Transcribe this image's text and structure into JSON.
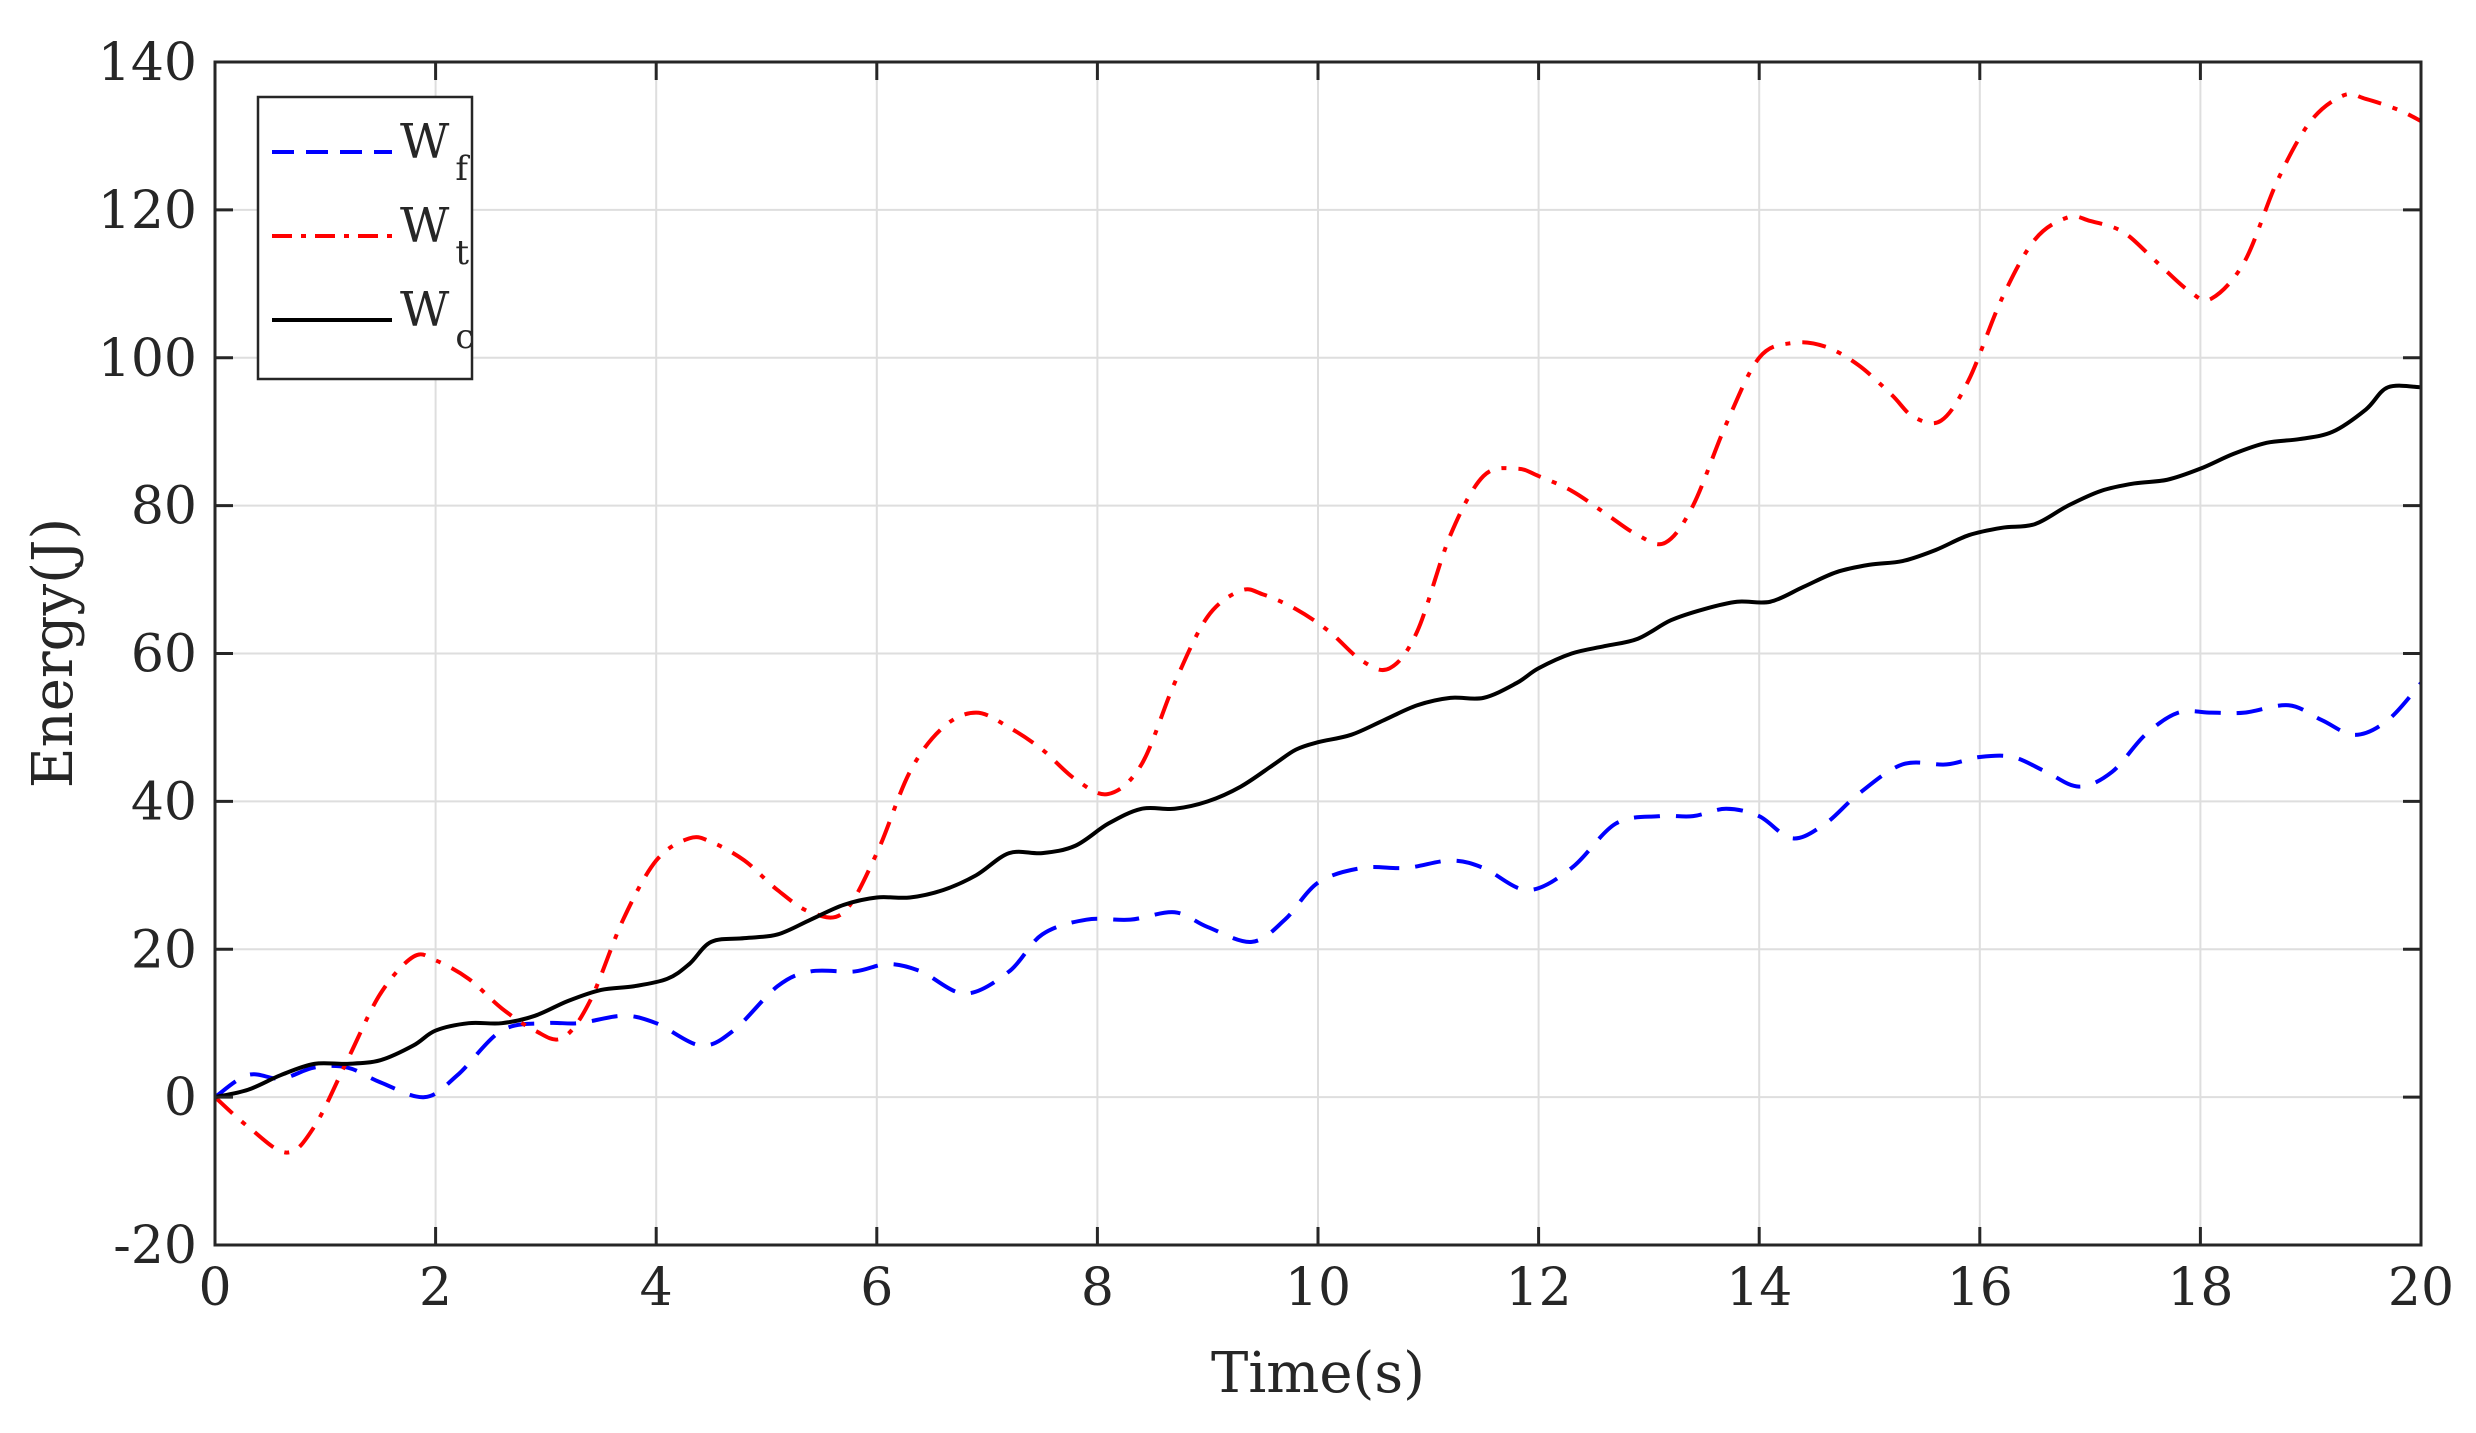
{
  "chart_data": {
    "type": "line",
    "xlabel": "Time(s)",
    "ylabel": "Energy(J)",
    "xlim": [
      0,
      20
    ],
    "ylim": [
      -20,
      140
    ],
    "xticks": [
      0,
      2,
      4,
      6,
      8,
      10,
      12,
      14,
      16,
      18,
      20
    ],
    "yticks": [
      -20,
      0,
      20,
      40,
      60,
      80,
      100,
      120,
      140
    ],
    "grid": true,
    "legend_position": "top-left",
    "series": [
      {
        "name": "W",
        "subscript": "f",
        "color": "#0000ff",
        "style": "dashed",
        "x": [
          0,
          0.3,
          0.6,
          0.9,
          1.2,
          1.5,
          1.9,
          2.2,
          2.6,
          3.0,
          3.3,
          3.7,
          4.0,
          4.4,
          4.7,
          5.1,
          5.4,
          5.8,
          6.1,
          6.4,
          6.8,
          7.2,
          7.5,
          7.9,
          8.3,
          8.7,
          9.0,
          9.4,
          9.7,
          10.0,
          10.4,
          10.8,
          11.2,
          11.5,
          11.9,
          12.3,
          12.7,
          13.1,
          13.4,
          13.7,
          14.0,
          14.3,
          14.6,
          14.9,
          15.3,
          15.7,
          16.0,
          16.3,
          16.6,
          16.9,
          17.2,
          17.5,
          17.8,
          18.1,
          18.4,
          18.8,
          19.1,
          19.4,
          19.7,
          20.0
        ],
        "y": [
          0,
          3,
          2.5,
          4,
          4,
          2,
          0,
          3,
          9,
          10,
          10,
          11,
          10,
          7,
          9,
          15,
          17,
          17,
          18,
          17,
          14,
          17,
          22,
          24,
          24,
          25,
          23,
          21,
          24,
          29,
          31,
          31,
          32,
          31,
          28,
          31,
          37,
          38,
          38,
          39,
          38,
          35,
          37,
          41,
          45,
          45,
          46,
          46,
          44,
          42,
          44,
          49,
          52,
          52,
          52,
          53,
          51,
          49,
          51,
          56
        ]
      },
      {
        "name": "W",
        "subscript": "t",
        "color": "#ff0000",
        "style": "dash-dot",
        "x": [
          0,
          0.3,
          0.65,
          0.9,
          1.2,
          1.5,
          1.8,
          2.0,
          2.3,
          2.6,
          2.9,
          3.15,
          3.4,
          3.7,
          4.0,
          4.3,
          4.5,
          4.8,
          5.1,
          5.4,
          5.7,
          6.0,
          6.3,
          6.6,
          6.9,
          7.2,
          7.5,
          7.8,
          8.1,
          8.4,
          8.7,
          9.0,
          9.3,
          9.5,
          9.8,
          10.1,
          10.4,
          10.65,
          10.9,
          11.2,
          11.5,
          11.8,
          12.0,
          12.3,
          12.6,
          12.9,
          13.15,
          13.4,
          13.7,
          14.0,
          14.3,
          14.6,
          14.9,
          15.2,
          15.4,
          15.65,
          15.9,
          16.2,
          16.5,
          16.8,
          17.0,
          17.3,
          17.6,
          17.9,
          18.1,
          18.4,
          18.7,
          19.0,
          19.3,
          19.5,
          19.8,
          20.0
        ],
        "y": [
          0,
          -4,
          -7.5,
          -4,
          5,
          14,
          19,
          18.5,
          16,
          12,
          9,
          8,
          13,
          24,
          32,
          35,
          34.5,
          32,
          28,
          25,
          25,
          33,
          44,
          50,
          52,
          50,
          47,
          43,
          41,
          45,
          56,
          65,
          68.5,
          68,
          66,
          63,
          59,
          58,
          63,
          76,
          84,
          85,
          84,
          82,
          79,
          76,
          75,
          80,
          91,
          100,
          102,
          101.5,
          99,
          95,
          92,
          91.5,
          97,
          108,
          116,
          119,
          118.5,
          117,
          113,
          109,
          108,
          113,
          124,
          132,
          135.5,
          135,
          133.5,
          132
        ]
      },
      {
        "name": "W",
        "subscript": "c",
        "color": "#000000",
        "style": "solid",
        "x": [
          0,
          0.3,
          0.6,
          0.9,
          1.2,
          1.5,
          1.8,
          2.0,
          2.3,
          2.6,
          2.9,
          3.2,
          3.5,
          3.8,
          4.1,
          4.3,
          4.5,
          4.8,
          5.1,
          5.4,
          5.7,
          6.0,
          6.3,
          6.6,
          6.9,
          7.2,
          7.5,
          7.8,
          8.1,
          8.4,
          8.7,
          9.0,
          9.3,
          9.6,
          9.8,
          10.0,
          10.3,
          10.6,
          10.9,
          11.2,
          11.5,
          11.8,
          12.0,
          12.3,
          12.6,
          12.9,
          13.2,
          13.5,
          13.8,
          14.1,
          14.4,
          14.7,
          15.0,
          15.3,
          15.6,
          15.9,
          16.2,
          16.5,
          16.8,
          17.1,
          17.4,
          17.7,
          18.0,
          18.3,
          18.6,
          18.9,
          19.2,
          19.5,
          19.7,
          20.0
        ],
        "y": [
          0,
          1,
          3,
          4.5,
          4.5,
          5,
          7,
          9,
          10,
          10,
          11,
          13,
          14.5,
          15,
          16,
          18,
          21,
          21.5,
          22,
          24,
          26,
          27,
          27,
          28,
          30,
          33,
          33,
          34,
          37,
          39,
          39,
          40,
          42,
          45,
          47,
          48,
          49,
          51,
          53,
          54,
          54,
          56,
          58,
          60,
          61,
          62,
          64.5,
          66,
          67,
          67,
          69,
          71,
          72,
          72.5,
          74,
          76,
          77,
          77.5,
          80,
          82,
          83,
          83.5,
          85,
          87,
          88.5,
          89,
          90,
          93,
          96,
          96
        ]
      }
    ]
  }
}
